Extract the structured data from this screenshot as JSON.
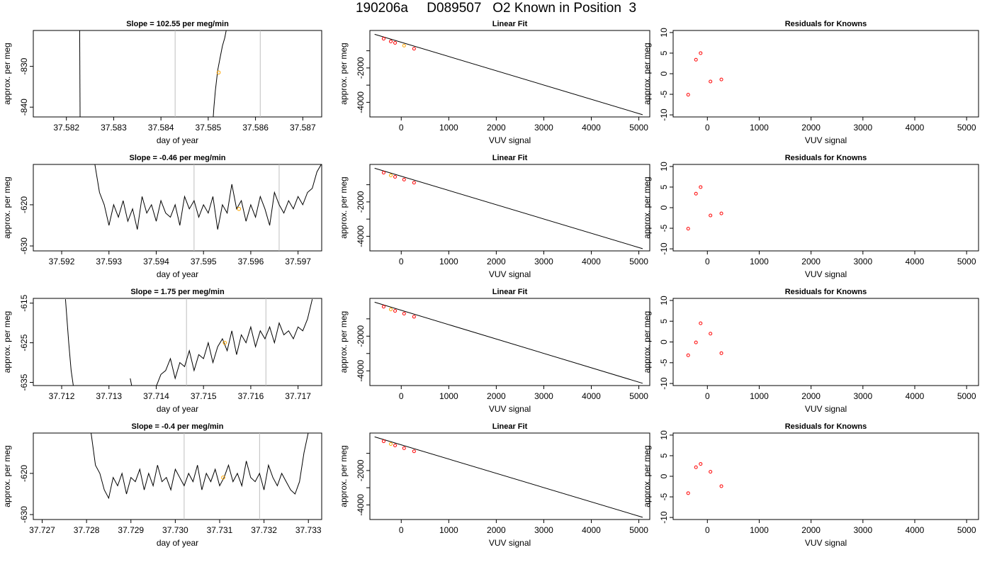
{
  "title": "190206a     D089507   O2 Known in Position  3",
  "colors": {
    "trace": "#000000",
    "vline": "#bebebe",
    "marker_orange": "#ffa500",
    "marker_red": "#ff0000",
    "fit_line": "#000000"
  },
  "chart_data": [
    {
      "type": "line",
      "title": "Slope =  102.55  per meg/min",
      "xlabel": "day of year",
      "ylabel": "approx. per meg",
      "xlim": [
        37.5813,
        37.5874
      ],
      "ylim": [
        -842.4,
        -821.2
      ],
      "xticks": [
        "37.582",
        "37.583",
        "37.584",
        "37.585",
        "37.586",
        "37.587"
      ],
      "yticks": [
        "-830",
        "-840"
      ],
      "ytick_values": [
        -830,
        -840
      ],
      "vlines": [
        37.5843,
        37.5861
      ],
      "marker": [
        37.58522,
        -831.5
      ],
      "series": [
        {
          "x": [
            37.58228,
            37.58229
          ],
          "y": [
            -820,
            -845
          ]
        },
        {
          "x": [
            37.58509,
            37.58512,
            37.58515,
            37.5852,
            37.58525,
            37.5853,
            37.58535,
            37.5854
          ],
          "y": [
            -845,
            -840,
            -836,
            -831,
            -828,
            -825,
            -823,
            -820
          ]
        }
      ]
    },
    {
      "type": "line",
      "title": "Slope =  -0.46  per meg/min",
      "xlabel": "day of year",
      "ylabel": "approx. per meg",
      "xlim": [
        37.5914,
        37.5975
      ],
      "ylim": [
        -631.2,
        -610.2
      ],
      "xticks": [
        "37.592",
        "37.593",
        "37.594",
        "37.595",
        "37.596",
        "37.597"
      ],
      "yticks": [
        "-620",
        "-630"
      ],
      "ytick_values": [
        -620,
        -630
      ],
      "vlines": [
        37.5948,
        37.5966
      ],
      "marker": [
        37.59575,
        -621
      ],
      "series": [
        {
          "x": [
            37.5927,
            37.5928,
            37.5929,
            37.593,
            37.5931,
            37.5932,
            37.5933,
            37.5934,
            37.5935,
            37.5936,
            37.5937,
            37.5938,
            37.5939,
            37.594,
            37.5941,
            37.5942,
            37.5943,
            37.5944,
            37.5945,
            37.5946,
            37.5947,
            37.5948,
            37.5949,
            37.595,
            37.5951,
            37.5952,
            37.5953,
            37.5954,
            37.5955,
            37.5956,
            37.5957,
            37.5958,
            37.5959,
            37.596,
            37.5961,
            37.5962,
            37.5963,
            37.5964,
            37.5965,
            37.5966,
            37.5967,
            37.5968,
            37.5969,
            37.597,
            37.5971,
            37.5972,
            37.5973,
            37.5974,
            37.5975
          ],
          "y": [
            -610,
            -617,
            -620,
            -625,
            -620,
            -623,
            -619,
            -624,
            -621,
            -626,
            -618,
            -622,
            -620,
            -624,
            -619,
            -622,
            -623,
            -620,
            -625,
            -618,
            -621,
            -619,
            -623,
            -620,
            -622,
            -618,
            -626,
            -620,
            -622,
            -615,
            -621,
            -619,
            -624,
            -620,
            -623,
            -618,
            -621,
            -625,
            -617,
            -620,
            -622,
            -619,
            -621,
            -618,
            -620,
            -617,
            -616,
            -612,
            -610
          ]
        }
      ]
    },
    {
      "type": "line",
      "title": "Slope =  1.75  per meg/min",
      "xlabel": "day of year",
      "ylabel": "approx. per meg",
      "xlim": [
        37.7114,
        37.7175
      ],
      "ylim": [
        -635.8,
        -613.8
      ],
      "xticks": [
        "37.712",
        "37.713",
        "37.714",
        "37.715",
        "37.716",
        "37.717"
      ],
      "yticks": [
        "-615",
        "-625",
        "-635"
      ],
      "ytick_values": [
        -615,
        -625,
        -635
      ],
      "vlines": [
        37.71464,
        37.71632
      ],
      "marker": [
        37.71545,
        -625
      ],
      "series": [
        {
          "x": [
            37.71208,
            37.71215,
            37.7122,
            37.71226
          ],
          "y": [
            -614,
            -625,
            -632,
            -637
          ]
        },
        {
          "x": [
            37.71345,
            37.7135
          ],
          "y": [
            -634,
            -637
          ]
        },
        {
          "x": [
            37.714,
            37.7141,
            37.7142,
            37.7143,
            37.7144,
            37.7145,
            37.7146,
            37.7147,
            37.7148,
            37.7149,
            37.715,
            37.7151,
            37.7152,
            37.7153,
            37.7154,
            37.7155,
            37.7156,
            37.7157,
            37.7158,
            37.7159,
            37.716,
            37.7161,
            37.7162,
            37.7163,
            37.7164,
            37.7165,
            37.7166,
            37.7167,
            37.7168,
            37.7169,
            37.717,
            37.7171,
            37.7172,
            37.7173
          ],
          "y": [
            -636,
            -633,
            -632,
            -629,
            -634,
            -630,
            -631,
            -627,
            -632,
            -628,
            -629,
            -625,
            -630,
            -626,
            -624,
            -627,
            -622,
            -628,
            -623,
            -625,
            -621,
            -626,
            -622,
            -624,
            -621,
            -625,
            -620,
            -623,
            -622,
            -624,
            -621,
            -622,
            -619,
            -614
          ]
        }
      ]
    },
    {
      "type": "line",
      "title": "Slope =  -0.4  per meg/min",
      "xlabel": "day of year",
      "ylabel": "approx. per meg",
      "xlim": [
        37.7268,
        37.7333
      ],
      "ylim": [
        -631.2,
        -610.2
      ],
      "xticks": [
        "37.727",
        "37.728",
        "37.729",
        "37.730",
        "37.731",
        "37.732",
        "37.733"
      ],
      "yticks": [
        "-620",
        "-630"
      ],
      "ytick_values": [
        -620,
        -630
      ],
      "vlines": [
        37.7302,
        37.7319
      ],
      "marker": [
        37.73108,
        -621
      ],
      "series": [
        {
          "x": [
            37.7281,
            37.7282,
            37.7283,
            37.7284,
            37.7285,
            37.7286,
            37.7287,
            37.7288,
            37.7289,
            37.729,
            37.7291,
            37.7292,
            37.7293,
            37.7294,
            37.7295,
            37.7296,
            37.7297,
            37.7298,
            37.7299,
            37.73,
            37.7301,
            37.7302,
            37.7303,
            37.7304,
            37.7305,
            37.7306,
            37.7307,
            37.7308,
            37.7309,
            37.731,
            37.7311,
            37.7312,
            37.7313,
            37.7314,
            37.7315,
            37.7316,
            37.7317,
            37.7318,
            37.7319,
            37.732,
            37.7321,
            37.7322,
            37.7323,
            37.7324,
            37.7325,
            37.7326,
            37.7327,
            37.7328,
            37.7329,
            37.733
          ],
          "y": [
            -610,
            -618,
            -620,
            -624,
            -626,
            -621,
            -623,
            -620,
            -625,
            -621,
            -622,
            -619,
            -624,
            -620,
            -623,
            -618,
            -622,
            -621,
            -624,
            -619,
            -621,
            -623,
            -620,
            -622,
            -618,
            -624,
            -620,
            -622,
            -619,
            -623,
            -621,
            -618,
            -622,
            -620,
            -623,
            -617,
            -621,
            -622,
            -620,
            -624,
            -618,
            -621,
            -623,
            -620,
            -622,
            -624,
            -625,
            -622,
            -615,
            -610
          ]
        }
      ]
    },
    {
      "type": "scatter",
      "title": "Linear Fit",
      "xlabel": "VUV signal",
      "ylabel": "approx. per meg",
      "xlim": [
        -660,
        5230
      ],
      "ylim": [
        -4850,
        180
      ],
      "xticks": [
        0,
        1000,
        2000,
        3000,
        4000,
        5000
      ],
      "yticks": [
        -2000,
        -4000
      ],
      "yticks_minor": [
        -1000,
        -3000
      ],
      "points": {
        "x": [
          -370,
          -220,
          -130,
          60,
          270
        ],
        "y": [
          -300,
          -460,
          -540,
          -700,
          -880
        ],
        "colors": [
          "#ff0000",
          "#ff0000",
          "#ff0000",
          "#ffa500",
          "#ff0000"
        ]
      },
      "fit_line": {
        "x": [
          -560,
          5080
        ],
        "y": [
          -40,
          -4720
        ]
      }
    },
    {
      "type": "scatter",
      "title": "Linear Fit",
      "xlabel": "VUV signal",
      "ylabel": "approx. per meg",
      "xlim": [
        -660,
        5230
      ],
      "ylim": [
        -4850,
        180
      ],
      "xticks": [
        0,
        1000,
        2000,
        3000,
        4000,
        5000
      ],
      "yticks": [
        -2000,
        -4000
      ],
      "yticks_minor": [
        -1000,
        -3000
      ],
      "points": {
        "x": [
          -370,
          -220,
          -130,
          60,
          270
        ],
        "y": [
          -300,
          -460,
          -540,
          -700,
          -880
        ],
        "colors": [
          "#ff0000",
          "#ffa500",
          "#ff0000",
          "#ff0000",
          "#ff0000"
        ]
      },
      "fit_line": {
        "x": [
          -560,
          5080
        ],
        "y": [
          -40,
          -4720
        ]
      }
    },
    {
      "type": "scatter",
      "title": "Linear Fit",
      "xlabel": "VUV signal",
      "ylabel": "approx. per meg",
      "xlim": [
        -660,
        5230
      ],
      "ylim": [
        -4850,
        180
      ],
      "xticks": [
        0,
        1000,
        2000,
        3000,
        4000,
        5000
      ],
      "yticks": [
        -2000,
        -4000
      ],
      "yticks_minor": [
        -1000,
        -3000
      ],
      "points": {
        "x": [
          -370,
          -220,
          -130,
          60,
          270
        ],
        "y": [
          -300,
          -460,
          -540,
          -700,
          -880
        ],
        "colors": [
          "#ff0000",
          "#ffa500",
          "#ff0000",
          "#ff0000",
          "#ff0000"
        ]
      },
      "fit_line": {
        "x": [
          -560,
          5080
        ],
        "y": [
          -40,
          -4720
        ]
      }
    },
    {
      "type": "scatter",
      "title": "Linear Fit",
      "xlabel": "VUV signal",
      "ylabel": "approx. per meg",
      "xlim": [
        -660,
        5230
      ],
      "ylim": [
        -4850,
        180
      ],
      "xticks": [
        0,
        1000,
        2000,
        3000,
        4000,
        5000
      ],
      "yticks": [
        -2000,
        -4000
      ],
      "yticks_minor": [
        -1000,
        -3000
      ],
      "points": {
        "x": [
          -370,
          -220,
          -130,
          60,
          270
        ],
        "y": [
          -300,
          -460,
          -540,
          -700,
          -880
        ],
        "colors": [
          "#ff0000",
          "#ffa500",
          "#ff0000",
          "#ff0000",
          "#ff0000"
        ]
      },
      "fit_line": {
        "x": [
          -560,
          5080
        ],
        "y": [
          -40,
          -4720
        ]
      }
    },
    {
      "type": "scatter",
      "title": "Residuals for Knowns",
      "xlabel": "VUV signal",
      "ylabel": "approx. per meg",
      "xlim": [
        -660,
        5230
      ],
      "ylim": [
        -10.5,
        10.5
      ],
      "xticks": [
        0,
        1000,
        2000,
        3000,
        4000,
        5000
      ],
      "yticks": [
        10,
        5,
        0,
        -5,
        -10
      ],
      "points": {
        "x": [
          -370,
          -220,
          -130,
          60,
          270
        ],
        "y": [
          -5.1,
          3.4,
          5.0,
          -1.9,
          -1.4
        ],
        "colors": [
          "#ff0000",
          "#ff0000",
          "#ff0000",
          "#ff0000",
          "#ff0000"
        ]
      }
    },
    {
      "type": "scatter",
      "title": "Residuals for Knowns",
      "xlabel": "VUV signal",
      "ylabel": "approx. per meg",
      "xlim": [
        -660,
        5230
      ],
      "ylim": [
        -10.5,
        10.5
      ],
      "xticks": [
        0,
        1000,
        2000,
        3000,
        4000,
        5000
      ],
      "yticks": [
        10,
        5,
        0,
        -5,
        -10
      ],
      "points": {
        "x": [
          -370,
          -220,
          -130,
          60,
          270
        ],
        "y": [
          -5.1,
          3.4,
          5.0,
          -1.9,
          -1.4
        ],
        "colors": [
          "#ff0000",
          "#ff0000",
          "#ff0000",
          "#ff0000",
          "#ff0000"
        ]
      }
    },
    {
      "type": "scatter",
      "title": "Residuals for Knowns",
      "xlabel": "VUV signal",
      "ylabel": "approx. per meg",
      "xlim": [
        -660,
        5230
      ],
      "ylim": [
        -10.5,
        10.5
      ],
      "xticks": [
        0,
        1000,
        2000,
        3000,
        4000,
        5000
      ],
      "yticks": [
        10,
        5,
        0,
        -5,
        -10
      ],
      "points": {
        "x": [
          -370,
          -220,
          -130,
          60,
          270
        ],
        "y": [
          -3.2,
          -0.1,
          4.5,
          2.0,
          -2.7
        ],
        "colors": [
          "#ff0000",
          "#ff0000",
          "#ff0000",
          "#ff0000",
          "#ff0000"
        ]
      }
    },
    {
      "type": "scatter",
      "title": "Residuals for Knowns",
      "xlabel": "VUV signal",
      "ylabel": "approx. per meg",
      "xlim": [
        -660,
        5230
      ],
      "ylim": [
        -10.5,
        10.5
      ],
      "xticks": [
        0,
        1000,
        2000,
        3000,
        4000,
        5000
      ],
      "yticks": [
        10,
        5,
        0,
        -5,
        -10
      ],
      "points": {
        "x": [
          -370,
          -220,
          -130,
          60,
          270
        ],
        "y": [
          -4.1,
          2.2,
          3.0,
          1.1,
          -2.4
        ],
        "colors": [
          "#ff0000",
          "#ff0000",
          "#ff0000",
          "#ff0000",
          "#ff0000"
        ]
      }
    }
  ]
}
